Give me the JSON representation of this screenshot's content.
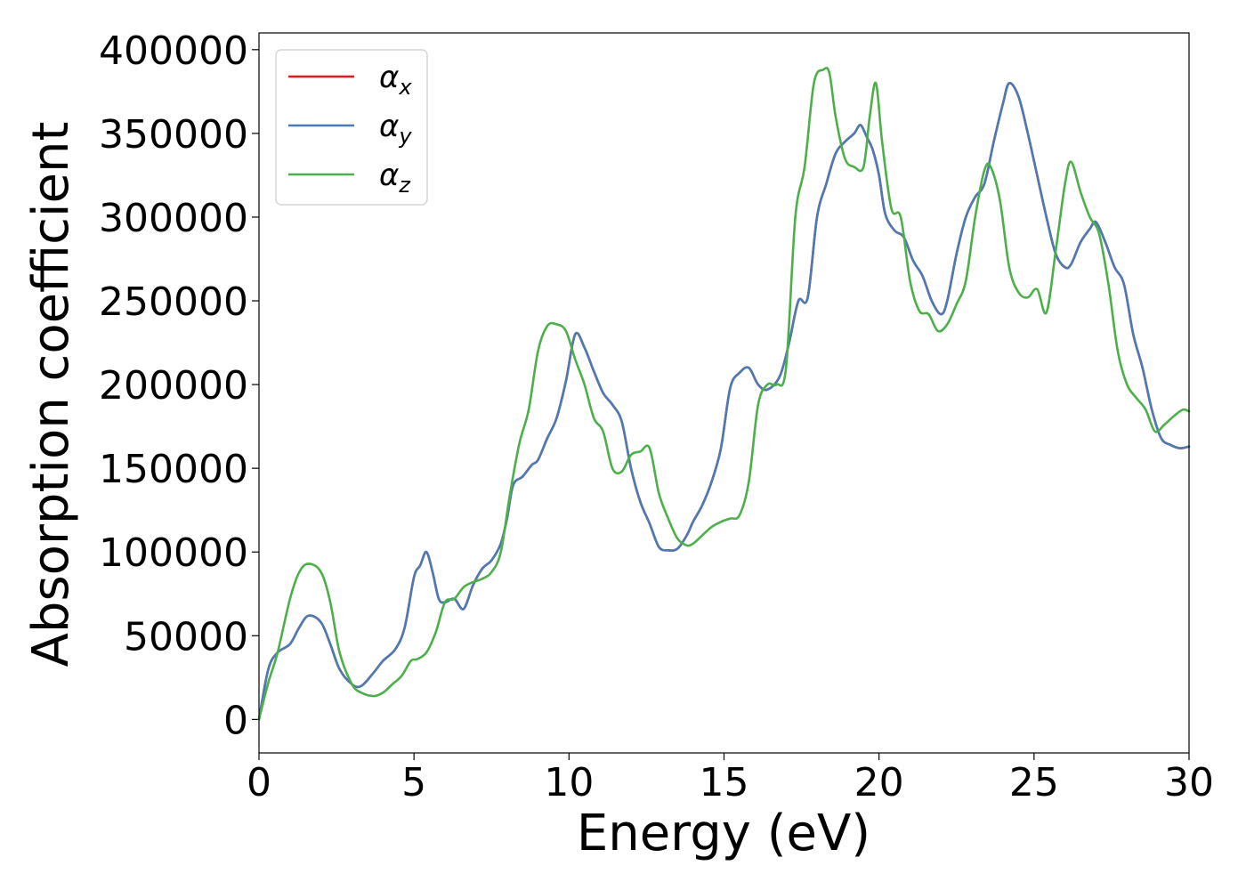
{
  "chart_data": {
    "type": "line",
    "title": "",
    "xlabel": "Energy (eV)",
    "ylabel": "Absorption coefficient",
    "xlim": [
      0,
      30
    ],
    "ylim": [
      -20000,
      410000
    ],
    "xticks": [
      0,
      5,
      10,
      15,
      20,
      25,
      30
    ],
    "yticks": [
      0,
      50000,
      100000,
      150000,
      200000,
      250000,
      300000,
      350000,
      400000
    ],
    "grid": false,
    "legend_position": "top-left",
    "series": [
      {
        "name": "x",
        "legend_symbol": "α",
        "legend_subscript": "x",
        "color": "#e41a1c",
        "x": [
          0,
          0.3,
          0.6,
          1.0,
          1.3,
          1.6,
          2.0,
          2.3,
          2.6,
          3.0,
          3.3,
          3.7,
          4.0,
          4.4,
          4.7,
          5.0,
          5.2,
          5.4,
          5.6,
          5.8,
          6.0,
          6.3,
          6.6,
          6.9,
          7.2,
          7.5,
          7.8,
          8.0,
          8.2,
          8.5,
          8.8,
          9.0,
          9.3,
          9.6,
          9.9,
          10.2,
          10.5,
          10.8,
          11.1,
          11.4,
          11.7,
          12.0,
          12.3,
          12.6,
          12.9,
          13.2,
          13.5,
          13.8,
          14.0,
          14.3,
          14.6,
          14.9,
          15.2,
          15.5,
          15.8,
          16.1,
          16.4,
          16.8,
          17.1,
          17.4,
          17.7,
          18.0,
          18.3,
          18.6,
          18.9,
          19.2,
          19.4,
          19.6,
          19.8,
          20.0,
          20.2,
          20.5,
          20.8,
          21.1,
          21.4,
          21.7,
          22.0,
          22.2,
          22.5,
          22.8,
          23.1,
          23.4,
          23.7,
          24.0,
          24.2,
          24.5,
          24.8,
          25.1,
          25.4,
          25.7,
          26.0,
          26.2,
          26.5,
          26.8,
          27.0,
          27.3,
          27.6,
          27.9,
          28.2,
          28.5,
          28.8,
          29.1,
          29.4,
          29.7,
          30.0
        ],
        "values": [
          0,
          30000,
          40000,
          45000,
          55000,
          62000,
          58000,
          45000,
          30000,
          21000,
          20000,
          28000,
          35000,
          42000,
          55000,
          85000,
          92000,
          100000,
          88000,
          72000,
          70000,
          72000,
          66000,
          80000,
          90000,
          95000,
          105000,
          120000,
          140000,
          145000,
          152000,
          155000,
          168000,
          180000,
          202000,
          230000,
          222000,
          208000,
          195000,
          188000,
          178000,
          150000,
          130000,
          117000,
          103000,
          101000,
          102000,
          110000,
          118000,
          128000,
          142000,
          162000,
          198000,
          207000,
          210000,
          200000,
          197000,
          205000,
          225000,
          250000,
          252000,
          300000,
          320000,
          338000,
          345000,
          350000,
          355000,
          348000,
          340000,
          325000,
          302000,
          292000,
          288000,
          274000,
          265000,
          250000,
          242000,
          250000,
          278000,
          300000,
          312000,
          320000,
          345000,
          368000,
          380000,
          372000,
          350000,
          325000,
          300000,
          278000,
          270000,
          272000,
          285000,
          293000,
          297000,
          285000,
          270000,
          260000,
          230000,
          210000,
          185000,
          168000,
          164000,
          162000,
          163000
        ]
      },
      {
        "name": "y",
        "legend_symbol": "α",
        "legend_subscript": "y",
        "color": "#4a7bb5",
        "x": [
          0,
          0.3,
          0.6,
          1.0,
          1.3,
          1.6,
          2.0,
          2.3,
          2.6,
          3.0,
          3.3,
          3.7,
          4.0,
          4.4,
          4.7,
          5.0,
          5.2,
          5.4,
          5.6,
          5.8,
          6.0,
          6.3,
          6.6,
          6.9,
          7.2,
          7.5,
          7.8,
          8.0,
          8.2,
          8.5,
          8.8,
          9.0,
          9.3,
          9.6,
          9.9,
          10.2,
          10.5,
          10.8,
          11.1,
          11.4,
          11.7,
          12.0,
          12.3,
          12.6,
          12.9,
          13.2,
          13.5,
          13.8,
          14.0,
          14.3,
          14.6,
          14.9,
          15.2,
          15.5,
          15.8,
          16.1,
          16.4,
          16.8,
          17.1,
          17.4,
          17.7,
          18.0,
          18.3,
          18.6,
          18.9,
          19.2,
          19.4,
          19.6,
          19.8,
          20.0,
          20.2,
          20.5,
          20.8,
          21.1,
          21.4,
          21.7,
          22.0,
          22.2,
          22.5,
          22.8,
          23.1,
          23.4,
          23.7,
          24.0,
          24.2,
          24.5,
          24.8,
          25.1,
          25.4,
          25.7,
          26.0,
          26.2,
          26.5,
          26.8,
          27.0,
          27.3,
          27.6,
          27.9,
          28.2,
          28.5,
          28.8,
          29.1,
          29.4,
          29.7,
          30.0
        ],
        "values": [
          0,
          30000,
          40000,
          45000,
          55000,
          62000,
          58000,
          45000,
          30000,
          21000,
          20000,
          28000,
          35000,
          42000,
          55000,
          85000,
          92000,
          100000,
          88000,
          72000,
          70000,
          72000,
          66000,
          80000,
          90000,
          95000,
          105000,
          120000,
          140000,
          145000,
          152000,
          155000,
          168000,
          180000,
          202000,
          230000,
          222000,
          208000,
          195000,
          188000,
          178000,
          150000,
          130000,
          117000,
          103000,
          101000,
          102000,
          110000,
          118000,
          128000,
          142000,
          162000,
          198000,
          207000,
          210000,
          200000,
          197000,
          205000,
          225000,
          250000,
          252000,
          300000,
          320000,
          338000,
          345000,
          350000,
          355000,
          348000,
          340000,
          325000,
          302000,
          292000,
          288000,
          274000,
          265000,
          250000,
          242000,
          250000,
          278000,
          300000,
          312000,
          320000,
          345000,
          368000,
          380000,
          372000,
          350000,
          325000,
          300000,
          278000,
          270000,
          272000,
          285000,
          293000,
          297000,
          285000,
          270000,
          260000,
          230000,
          210000,
          185000,
          168000,
          164000,
          162000,
          163000
        ]
      },
      {
        "name": "z",
        "legend_symbol": "α",
        "legend_subscript": "z",
        "color": "#4daf4a",
        "x": [
          0,
          0.3,
          0.6,
          1.0,
          1.3,
          1.6,
          2.0,
          2.3,
          2.6,
          3.0,
          3.3,
          3.7,
          4.0,
          4.3,
          4.6,
          4.9,
          5.1,
          5.4,
          5.7,
          6.0,
          6.3,
          6.6,
          6.9,
          7.2,
          7.5,
          7.8,
          8.1,
          8.4,
          8.7,
          9.0,
          9.3,
          9.6,
          9.9,
          10.2,
          10.5,
          10.8,
          11.1,
          11.4,
          11.7,
          12.0,
          12.3,
          12.6,
          12.9,
          13.2,
          13.5,
          13.8,
          14.0,
          14.3,
          14.6,
          14.9,
          15.2,
          15.5,
          15.8,
          16.1,
          16.4,
          16.7,
          17.0,
          17.3,
          17.6,
          17.9,
          18.2,
          18.4,
          18.6,
          18.9,
          19.2,
          19.5,
          19.7,
          19.9,
          20.1,
          20.4,
          20.7,
          21.0,
          21.3,
          21.6,
          21.9,
          22.2,
          22.5,
          22.8,
          23.1,
          23.4,
          23.6,
          23.9,
          24.2,
          24.5,
          24.8,
          25.1,
          25.4,
          25.7,
          26.0,
          26.2,
          26.5,
          26.8,
          27.1,
          27.4,
          27.7,
          28.0,
          28.3,
          28.6,
          28.9,
          29.2,
          29.5,
          29.8,
          30.0
        ],
        "values": [
          0,
          22000,
          40000,
          72000,
          88000,
          93000,
          88000,
          70000,
          40000,
          21000,
          16000,
          14000,
          16000,
          21000,
          26000,
          35000,
          36000,
          40000,
          52000,
          70000,
          72000,
          79000,
          82000,
          84000,
          88000,
          100000,
          135000,
          165000,
          185000,
          220000,
          235000,
          236000,
          232000,
          215000,
          200000,
          180000,
          172000,
          150000,
          148000,
          158000,
          160000,
          162000,
          135000,
          120000,
          108000,
          104000,
          105000,
          110000,
          115000,
          118000,
          120000,
          122000,
          142000,
          188000,
          200000,
          200000,
          210000,
          300000,
          330000,
          380000,
          388000,
          386000,
          360000,
          335000,
          330000,
          330000,
          360000,
          380000,
          345000,
          305000,
          300000,
          262000,
          244000,
          242000,
          232000,
          236000,
          248000,
          262000,
          300000,
          328000,
          330000,
          310000,
          270000,
          255000,
          252000,
          257000,
          243000,
          280000,
          320000,
          333000,
          315000,
          300000,
          290000,
          260000,
          220000,
          200000,
          192000,
          185000,
          172000,
          176000,
          181000,
          185000,
          184000
        ]
      }
    ]
  }
}
